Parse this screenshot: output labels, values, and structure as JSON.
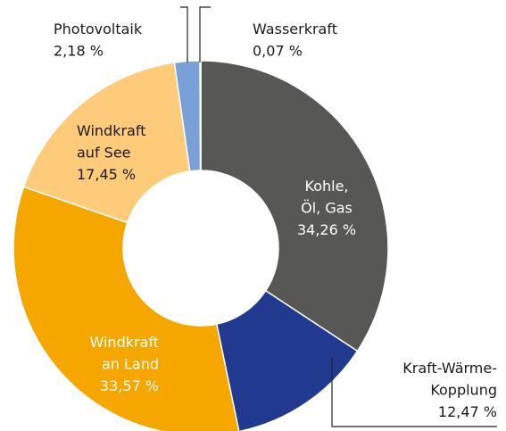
{
  "chart_data": {
    "type": "donut",
    "categories": [
      [
        "Kohle,",
        "Öl, Gas"
      ],
      [
        "Kraft-Wärme-",
        "Kopplung"
      ],
      [
        "Windkraft",
        "an Land"
      ],
      [
        "Windkraft",
        "auf See"
      ],
      [
        "Photovoltaik"
      ],
      [
        "Wasserkraft"
      ]
    ],
    "values": [
      34.26,
      12.47,
      33.57,
      17.45,
      2.18,
      0.07
    ],
    "value_labels": [
      "34,26 %",
      "12,47 %",
      "33,57 %",
      "17,45 %",
      "2,18 %",
      "0,07 %"
    ],
    "colors": [
      "#575756",
      "#213a8f",
      "#f5a700",
      "#fdcb7a",
      "#7aa0d8",
      "#3d63ad"
    ]
  }
}
